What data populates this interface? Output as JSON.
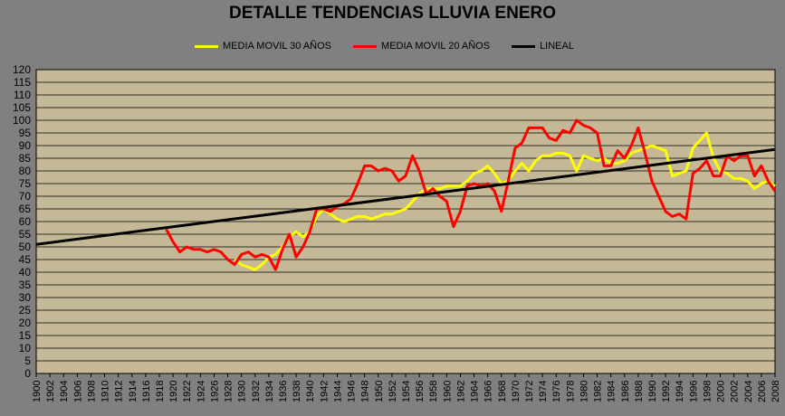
{
  "chart_data": {
    "type": "line",
    "title": "DETALLE TENDENCIAS LLUVIA ENERO",
    "xlabel": "",
    "ylabel": "",
    "xlim": [
      1900,
      2008
    ],
    "ylim": [
      0,
      120
    ],
    "ytick_step": 5,
    "xtick_step": 2,
    "grid": true,
    "legend_position": "top",
    "plot_background": "#c5b896",
    "series": [
      {
        "name": "MEDIA MOVIL 30 AÑOS",
        "color": "#ffff00",
        "x": [
          1929,
          1930,
          1931,
          1932,
          1933,
          1934,
          1935,
          1936,
          1937,
          1938,
          1939,
          1940,
          1941,
          1942,
          1943,
          1944,
          1945,
          1946,
          1947,
          1948,
          1949,
          1950,
          1951,
          1952,
          1953,
          1954,
          1955,
          1956,
          1957,
          1958,
          1959,
          1960,
          1961,
          1962,
          1963,
          1964,
          1965,
          1966,
          1967,
          1968,
          1969,
          1970,
          1971,
          1972,
          1973,
          1974,
          1975,
          1976,
          1977,
          1978,
          1979,
          1980,
          1981,
          1982,
          1983,
          1984,
          1985,
          1986,
          1987,
          1988,
          1989,
          1990,
          1991,
          1992,
          1993,
          1994,
          1995,
          1996,
          1997,
          1998,
          1999,
          2000,
          2001,
          2002,
          2003,
          2004,
          2005,
          2006,
          2007,
          2008
        ],
        "values": [
          45,
          43,
          42,
          41,
          43,
          46,
          47,
          50,
          54,
          56,
          54,
          56,
          62,
          65,
          63,
          61,
          60,
          61,
          62,
          62,
          61,
          62,
          63,
          63,
          64,
          65,
          68,
          71,
          73,
          73,
          73,
          74,
          74,
          74,
          76,
          79,
          80,
          82,
          79,
          75,
          76,
          80,
          83,
          80,
          84,
          86,
          86,
          87,
          87,
          86,
          80,
          86,
          85,
          84,
          85,
          83,
          83,
          84,
          87,
          88,
          89,
          90,
          89,
          88,
          78,
          79,
          80,
          89,
          92,
          95,
          85,
          80,
          79,
          77,
          77,
          76,
          73,
          75,
          76,
          74
        ]
      },
      {
        "name": "MEDIA MOVIL 20 AÑOS",
        "color": "#ff0000",
        "x": [
          1919,
          1920,
          1921,
          1922,
          1923,
          1924,
          1925,
          1926,
          1927,
          1928,
          1929,
          1930,
          1931,
          1932,
          1933,
          1934,
          1935,
          1936,
          1937,
          1938,
          1939,
          1940,
          1941,
          1942,
          1943,
          1944,
          1945,
          1946,
          1947,
          1948,
          1949,
          1950,
          1951,
          1952,
          1953,
          1954,
          1955,
          1956,
          1957,
          1958,
          1959,
          1960,
          1961,
          1962,
          1963,
          1964,
          1965,
          1966,
          1967,
          1968,
          1969,
          1970,
          1971,
          1972,
          1973,
          1974,
          1975,
          1976,
          1977,
          1978,
          1979,
          1980,
          1981,
          1982,
          1983,
          1984,
          1985,
          1986,
          1987,
          1988,
          1989,
          1990,
          1991,
          1992,
          1993,
          1994,
          1995,
          1996,
          1997,
          1998,
          1999,
          2000,
          2001,
          2002,
          2003,
          2004,
          2005,
          2006,
          2007,
          2008
        ],
        "values": [
          57,
          52,
          48,
          50,
          49,
          49,
          48,
          49,
          48,
          45,
          43,
          47,
          48,
          46,
          47,
          46,
          41,
          49,
          55,
          46,
          50,
          56,
          65,
          65,
          64,
          66,
          67,
          69,
          75,
          82,
          82,
          80,
          81,
          80,
          76,
          78,
          86,
          80,
          71,
          73,
          70,
          68,
          58,
          64,
          74,
          75,
          74,
          75,
          72,
          64,
          76,
          89,
          91,
          97,
          97,
          97,
          93,
          92,
          96,
          95,
          100,
          98,
          97,
          95,
          82,
          82,
          88,
          85,
          90,
          97,
          87,
          76,
          70,
          64,
          62,
          63,
          61,
          79,
          81,
          84,
          78,
          78,
          86,
          84,
          86,
          86,
          78,
          82,
          76,
          72
        ]
      },
      {
        "name": "LINEAL",
        "color": "#000000",
        "x": [
          1900,
          2008
        ],
        "values": [
          51,
          88.5
        ]
      }
    ]
  }
}
